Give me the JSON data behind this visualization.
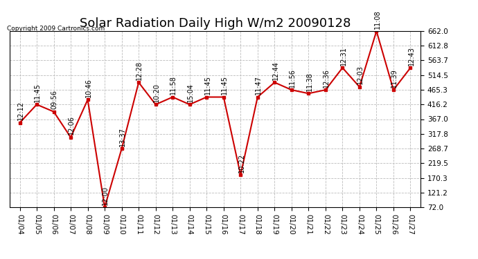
{
  "title": "Solar Radiation Daily High W/m2 20090128",
  "copyright": "Copyright 2009 Cartronics.com",
  "dates": [
    "01/04",
    "01/05",
    "01/06",
    "01/07",
    "01/08",
    "01/09",
    "01/10",
    "01/11",
    "01/12",
    "01/13",
    "01/14",
    "01/15",
    "01/16",
    "01/17",
    "01/18",
    "01/19",
    "01/20",
    "01/21",
    "01/22",
    "01/23",
    "01/24",
    "01/25",
    "01/26",
    "01/27"
  ],
  "values": [
    355,
    416,
    392,
    306,
    432,
    72,
    268,
    490,
    416,
    441,
    416,
    441,
    441,
    180,
    441,
    490,
    465,
    453,
    465,
    539,
    475,
    662,
    465,
    539
  ],
  "time_labels": [
    "12:12",
    "11:45",
    "09:56",
    "12:06",
    "10:46",
    "12:00",
    "13:37",
    "12:28",
    "10:20",
    "11:58",
    "15:04",
    "11:45",
    "11:45",
    "10:22",
    "11:47",
    "12:44",
    "11:56",
    "11:38",
    "12:36",
    "12:31",
    "12:03",
    "11:08",
    "11:39",
    "12:43"
  ],
  "ylim": [
    72.0,
    662.0
  ],
  "yticks": [
    72.0,
    121.2,
    170.3,
    219.5,
    268.7,
    317.8,
    367.0,
    416.2,
    465.3,
    514.5,
    563.7,
    612.8,
    662.0
  ],
  "line_color": "#cc0000",
  "marker_color": "#cc0000",
  "bg_color": "#ffffff",
  "grid_color": "#bbbbbb",
  "title_fontsize": 13,
  "label_fontsize": 7.5,
  "annotation_fontsize": 7
}
